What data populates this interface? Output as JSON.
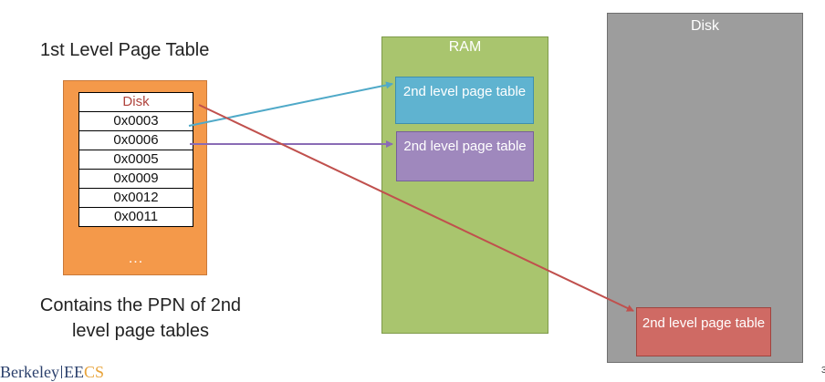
{
  "first_level_title": "1st Level Page Table",
  "page_table_rows": [
    "Disk",
    "0x0003",
    "0x0006",
    "0x0005",
    "0x0009",
    "0x0012",
    "0x0011"
  ],
  "page_table_ellipsis": "...",
  "caption": "Contains the PPN of 2nd level page tables",
  "ram_label": "RAM",
  "disk_label": "Disk",
  "second_level_label": "2nd level page table",
  "logo": {
    "part1": "Berkeley",
    "part2": "EE",
    "part3": "CS"
  },
  "page_number": "3",
  "colors": {
    "page_table_bg": "#f4994a",
    "ram_bg": "#a9c56e",
    "disk_bg": "#9d9d9d",
    "arrow_blue": "#4fa9c8",
    "arrow_purple": "#8a6bb5",
    "arrow_red": "#c0504d"
  }
}
